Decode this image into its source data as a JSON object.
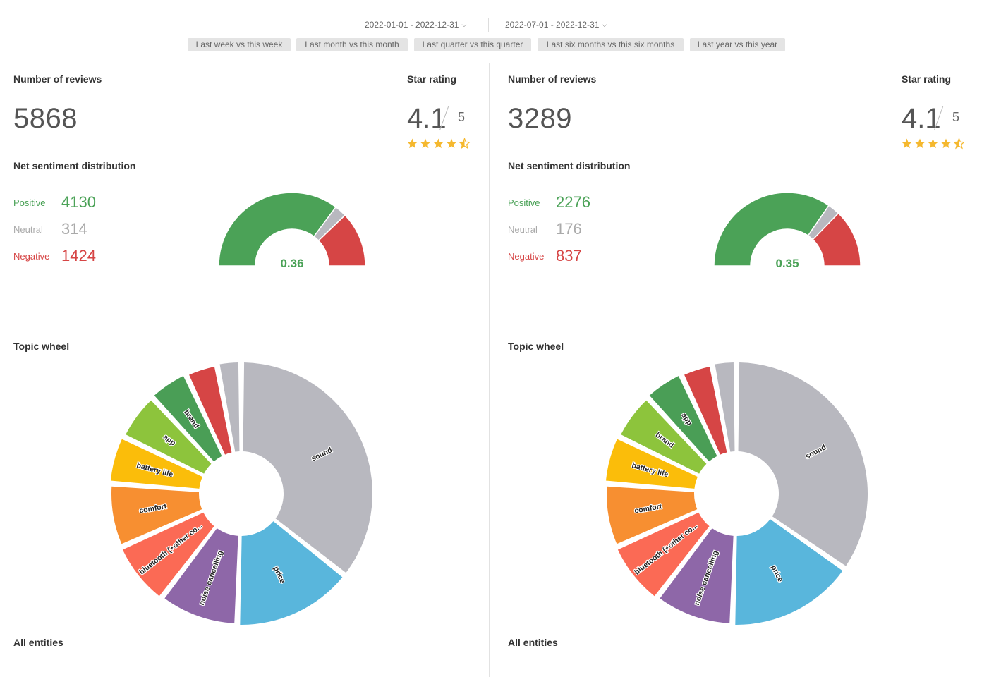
{
  "date_ranges": [
    {
      "label": "2022-01-01 - 2022-12-31"
    },
    {
      "label": "2022-07-01 - 2022-12-31"
    }
  ],
  "presets": [
    "Last week vs this week",
    "Last month vs this month",
    "Last quarter vs this quarter",
    "Last six months vs this six months",
    "Last year vs this year"
  ],
  "icons": {
    "chevron": "chevron-down-icon",
    "star": "star-icon",
    "half_star": "star-half-icon"
  },
  "colors": {
    "positive": "#4ba257",
    "neutral": "#b8b8bf",
    "negative": "#d64545",
    "star": "#f5b82e",
    "background": "#ffffff"
  },
  "labels": {
    "number_of_reviews": "Number of reviews",
    "star_rating": "Star rating",
    "net_sentiment_distribution": "Net sentiment distribution",
    "positive": "Positive",
    "neutral": "Neutral",
    "negative": "Negative",
    "topic_wheel": "Topic wheel",
    "all_entities": "All entities"
  },
  "panels": [
    {
      "reviews": "5868",
      "rating": "4.1",
      "rating_max": "5",
      "stars": 4.5,
      "sentiment": {
        "positive": "4130",
        "neutral": "314",
        "negative": "1424",
        "net": "0.36"
      }
    },
    {
      "reviews": "3289",
      "rating": "4.1",
      "rating_max": "5",
      "stars": 4.5,
      "sentiment": {
        "positive": "2276",
        "neutral": "176",
        "negative": "837",
        "net": "0.35"
      }
    }
  ],
  "chart_data": [
    {
      "type": "pie",
      "title": "Topic wheel",
      "categories": [
        "sound",
        "price",
        "noise cancelling",
        "bluetooth (+other co...",
        "comfort",
        "battery life",
        "app",
        "brand",
        "",
        ""
      ],
      "values": [
        36,
        15,
        10,
        8,
        8,
        6,
        6,
        5,
        4,
        3
      ],
      "colors": [
        "#b8b8bf",
        "#59b6dc",
        "#8e67a8",
        "#fb6a55",
        "#f78f31",
        "#fbbd0a",
        "#8dc43c",
        "#4a9e56",
        "#d64545",
        "#b8b8bf"
      ]
    },
    {
      "type": "pie",
      "title": "Topic wheel",
      "categories": [
        "sound",
        "price",
        "noise cancelling",
        "bluetooth (+other co...",
        "comfort",
        "battery life",
        "brand",
        "app",
        "",
        ""
      ],
      "values": [
        35,
        16,
        10,
        8,
        8,
        6,
        6,
        5,
        4,
        3
      ],
      "colors": [
        "#b8b8bf",
        "#59b6dc",
        "#8e67a8",
        "#fb6a55",
        "#f78f31",
        "#fbbd0a",
        "#8dc43c",
        "#4a9e56",
        "#d64545",
        "#b8b8bf"
      ]
    }
  ]
}
